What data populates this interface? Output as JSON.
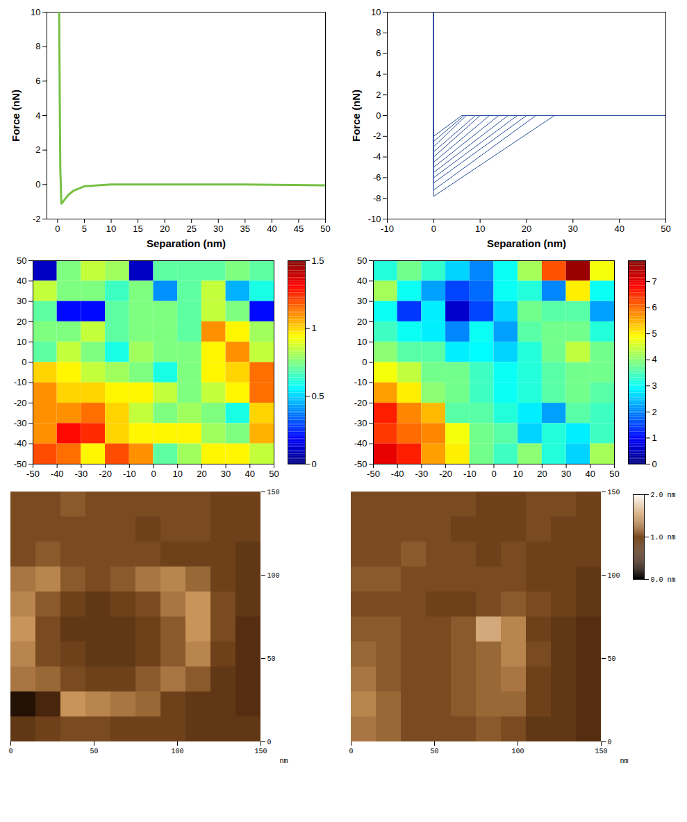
{
  "chart_data": [
    {
      "type": "line",
      "x_label": "Separation (nm)",
      "y_label": "Force (nN)",
      "xlim": [
        -2,
        50
      ],
      "xticks": [
        0,
        5,
        10,
        15,
        20,
        25,
        30,
        35,
        40,
        45,
        50
      ],
      "ylim": [
        -2,
        10
      ],
      "yticks": [
        -2,
        0,
        2,
        4,
        6,
        8,
        10
      ],
      "color": "#76c043",
      "series": [
        {
          "x": [
            0.3,
            0.4,
            0.5,
            0.7,
            1,
            1.5,
            2,
            3,
            5,
            10,
            20,
            35,
            50
          ],
          "values": [
            10,
            5,
            1,
            -1.1,
            -1.0,
            -0.8,
            -0.6,
            -0.35,
            -0.1,
            0,
            0,
            0,
            -0.05
          ]
        }
      ]
    },
    {
      "type": "line",
      "x_label": "Separation (nm)",
      "y_label": "Force (nN)",
      "xlim": [
        -10,
        50
      ],
      "xticks": [
        -10,
        0,
        10,
        20,
        30,
        40,
        50
      ],
      "ylim": [
        -10,
        10
      ],
      "yticks": [
        -10,
        -8,
        -6,
        -4,
        -2,
        0,
        2,
        4,
        6,
        8,
        10
      ],
      "color": "#2a4f9e",
      "series": [
        {
          "x": [
            0,
            0,
            26,
            50
          ],
          "values": [
            10,
            -7.8,
            0,
            0
          ]
        },
        {
          "x": [
            0,
            0,
            22,
            50
          ],
          "values": [
            10,
            -7.2,
            0,
            0
          ]
        },
        {
          "x": [
            0,
            0,
            20,
            50
          ],
          "values": [
            10,
            -6.5,
            0,
            0
          ]
        },
        {
          "x": [
            0,
            0,
            18,
            50
          ],
          "values": [
            10,
            -6,
            0,
            0
          ]
        },
        {
          "x": [
            0,
            0,
            16,
            50
          ],
          "values": [
            10,
            -5.5,
            0,
            0
          ]
        },
        {
          "x": [
            0,
            0,
            14,
            50
          ],
          "values": [
            10,
            -5,
            0,
            0
          ]
        },
        {
          "x": [
            0,
            0,
            12,
            50
          ],
          "values": [
            10,
            -4.5,
            0,
            0
          ]
        },
        {
          "x": [
            0,
            0,
            10,
            50
          ],
          "values": [
            10,
            -4,
            0,
            0
          ]
        },
        {
          "x": [
            0,
            0,
            9,
            50
          ],
          "values": [
            10,
            -3.5,
            0,
            0
          ]
        },
        {
          "x": [
            0,
            0,
            7,
            50
          ],
          "values": [
            10,
            -3,
            0,
            0
          ]
        },
        {
          "x": [
            0,
            0,
            6.5,
            50
          ],
          "values": [
            10,
            -2.5,
            0,
            0
          ]
        },
        {
          "x": [
            0,
            0,
            6,
            50
          ],
          "values": [
            10,
            -2,
            0,
            0
          ]
        }
      ]
    },
    {
      "type": "heatmap",
      "xlim": [
        -50,
        50
      ],
      "xticks": [
        -50,
        -40,
        -30,
        -20,
        -10,
        0,
        10,
        20,
        30,
        40,
        50
      ],
      "ylim": [
        -50,
        50
      ],
      "yticks": [
        -50,
        -40,
        -30,
        -20,
        -10,
        0,
        10,
        20,
        30,
        40,
        50
      ],
      "cells": [
        [
          0.1,
          0.75,
          0.85,
          0.8,
          0.1,
          0.7,
          0.7,
          0.7,
          0.75,
          0.7
        ],
        [
          0.85,
          0.75,
          0.75,
          0.65,
          0.75,
          0.4,
          0.7,
          0.85,
          0.45,
          0.6
        ],
        [
          0.7,
          0.2,
          0.2,
          0.7,
          0.75,
          0.75,
          0.7,
          0.85,
          0.75,
          0.2
        ],
        [
          0.75,
          0.75,
          0.85,
          0.7,
          0.75,
          0.75,
          0.7,
          1.1,
          0.95,
          0.8
        ],
        [
          0.7,
          0.85,
          0.75,
          0.6,
          0.8,
          0.75,
          0.75,
          0.95,
          1.1,
          0.85
        ],
        [
          1.0,
          0.95,
          0.85,
          0.8,
          0.75,
          0.6,
          0.75,
          0.95,
          1.0,
          1.15
        ],
        [
          1.1,
          1.0,
          1.0,
          0.95,
          0.95,
          0.85,
          0.75,
          0.85,
          0.95,
          1.15
        ],
        [
          1.1,
          1.1,
          1.15,
          1.0,
          0.85,
          0.75,
          0.8,
          0.75,
          0.6,
          1.0
        ],
        [
          1.1,
          1.3,
          1.25,
          1.0,
          0.95,
          0.95,
          0.95,
          0.8,
          0.75,
          1.05
        ],
        [
          1.2,
          1.15,
          0.95,
          1.2,
          1.1,
          0.7,
          0.8,
          0.95,
          0.95,
          0.85
        ]
      ],
      "colorbar": {
        "range": [
          0,
          1.5
        ],
        "ticks": [
          0,
          0.5,
          1,
          1.5
        ]
      }
    },
    {
      "type": "heatmap",
      "xlim": [
        -50,
        50
      ],
      "xticks": [
        -50,
        -40,
        -30,
        -20,
        -10,
        0,
        10,
        20,
        30,
        40,
        50
      ],
      "ylim": [
        -50,
        50
      ],
      "yticks": [
        -50,
        -40,
        -30,
        -20,
        -10,
        0,
        10,
        20,
        30,
        40,
        50
      ],
      "cells": [
        [
          3.2,
          3.8,
          3.3,
          2.6,
          2.0,
          3.0,
          4.2,
          6.2,
          7.6,
          4.8
        ],
        [
          4.2,
          3.0,
          2.2,
          1.5,
          1.8,
          3.0,
          3.2,
          2.0,
          5.0,
          3.0
        ],
        [
          3.0,
          1.4,
          2.8,
          0.6,
          1.5,
          2.6,
          3.8,
          3.6,
          3.6,
          2.2
        ],
        [
          3.4,
          3.0,
          2.8,
          2.0,
          3.0,
          2.2,
          3.6,
          3.8,
          3.8,
          3.2
        ],
        [
          4.0,
          3.6,
          3.6,
          2.8,
          2.9,
          2.6,
          3.2,
          3.8,
          4.4,
          3.8
        ],
        [
          4.8,
          4.4,
          3.8,
          3.8,
          3.4,
          3.0,
          3.2,
          3.6,
          3.8,
          3.8
        ],
        [
          5.6,
          5.0,
          4.0,
          3.8,
          3.4,
          3.0,
          3.2,
          3.6,
          3.8,
          3.6
        ],
        [
          6.6,
          5.8,
          5.4,
          3.6,
          3.6,
          3.2,
          2.8,
          2.2,
          3.6,
          3.4
        ],
        [
          6.4,
          6.0,
          5.8,
          4.8,
          3.8,
          3.6,
          2.6,
          3.2,
          2.8,
          3.4
        ],
        [
          7.0,
          6.6,
          5.6,
          5.0,
          3.8,
          3.4,
          4.0,
          3.2,
          2.6,
          4.2
        ]
      ],
      "colorbar": {
        "range": [
          0,
          7.8
        ],
        "ticks": [
          0,
          1,
          2,
          3,
          4,
          5,
          6,
          7
        ]
      }
    },
    {
      "type": "image",
      "x_label": "nm",
      "xlim": [
        0,
        150
      ],
      "xticks": [
        0,
        50,
        100,
        150
      ],
      "ylim": [
        0,
        150
      ],
      "yticks": [
        0,
        50,
        100,
        150
      ],
      "zlim": [
        0,
        2
      ],
      "cells": [
        [
          1.0,
          1.0,
          1.1,
          1.0,
          1.0,
          1.0,
          1.0,
          1.0,
          0.9,
          0.9
        ],
        [
          1.0,
          1.0,
          1.0,
          1.0,
          1.0,
          0.9,
          1.0,
          1.0,
          0.9,
          0.9
        ],
        [
          1.0,
          1.1,
          1.0,
          1.0,
          1.0,
          1.0,
          0.9,
          0.9,
          0.9,
          0.8
        ],
        [
          1.3,
          1.4,
          1.1,
          1.0,
          1.1,
          1.3,
          1.4,
          1.2,
          0.9,
          0.8
        ],
        [
          1.4,
          1.1,
          0.9,
          0.8,
          0.9,
          1.0,
          1.3,
          1.5,
          1.0,
          0.8
        ],
        [
          1.5,
          1.0,
          0.8,
          0.8,
          0.8,
          0.9,
          1.1,
          1.5,
          1.0,
          0.7
        ],
        [
          1.4,
          1.0,
          0.9,
          0.8,
          0.8,
          0.9,
          1.1,
          1.4,
          0.9,
          0.7
        ],
        [
          1.3,
          1.2,
          1.0,
          0.9,
          0.9,
          1.1,
          1.3,
          1.1,
          0.8,
          0.7
        ],
        [
          0.3,
          0.6,
          1.5,
          1.4,
          1.3,
          1.2,
          0.9,
          0.8,
          0.8,
          0.7
        ],
        [
          0.8,
          0.9,
          1.0,
          1.0,
          0.9,
          0.9,
          0.9,
          0.8,
          0.8,
          0.8
        ]
      ]
    },
    {
      "type": "image",
      "x_label": "nm",
      "xlim": [
        0,
        150
      ],
      "xticks": [
        0,
        50,
        100,
        150
      ],
      "ylim": [
        0,
        150
      ],
      "yticks": [
        0,
        50,
        100,
        150
      ],
      "cells": [
        [
          1.0,
          1.0,
          1.0,
          1.0,
          1.0,
          0.9,
          0.9,
          1.0,
          1.0,
          0.9
        ],
        [
          1.0,
          1.0,
          1.0,
          1.0,
          0.9,
          0.9,
          0.9,
          1.0,
          0.9,
          0.9
        ],
        [
          1.0,
          1.0,
          1.1,
          1.0,
          1.0,
          0.9,
          1.0,
          0.9,
          0.9,
          0.9
        ],
        [
          1.1,
          1.1,
          1.0,
          1.0,
          1.0,
          1.0,
          1.0,
          0.9,
          0.9,
          0.8
        ],
        [
          1.0,
          1.0,
          1.0,
          0.9,
          0.9,
          1.0,
          1.1,
          1.0,
          0.9,
          0.8
        ],
        [
          1.1,
          1.1,
          1.0,
          1.0,
          1.1,
          1.6,
          1.4,
          0.9,
          0.8,
          0.7
        ],
        [
          1.2,
          1.1,
          1.0,
          1.0,
          1.1,
          1.2,
          1.4,
          1.0,
          0.8,
          0.7
        ],
        [
          1.3,
          1.1,
          1.0,
          1.0,
          1.1,
          1.2,
          1.3,
          0.9,
          0.8,
          0.7
        ],
        [
          1.4,
          1.2,
          1.0,
          1.0,
          1.1,
          1.2,
          1.2,
          0.9,
          0.8,
          0.7
        ],
        [
          1.3,
          1.2,
          1.0,
          1.0,
          1.0,
          1.1,
          1.0,
          0.8,
          0.8,
          0.7
        ]
      ],
      "colorbar": {
        "range": [
          0,
          2
        ],
        "ticks": [
          {
            "value": 0,
            "label": "0.0 nm"
          },
          {
            "value": 1,
            "label": "1.0 nm"
          },
          {
            "value": 2,
            "label": "2.0 nm"
          }
        ]
      }
    }
  ]
}
